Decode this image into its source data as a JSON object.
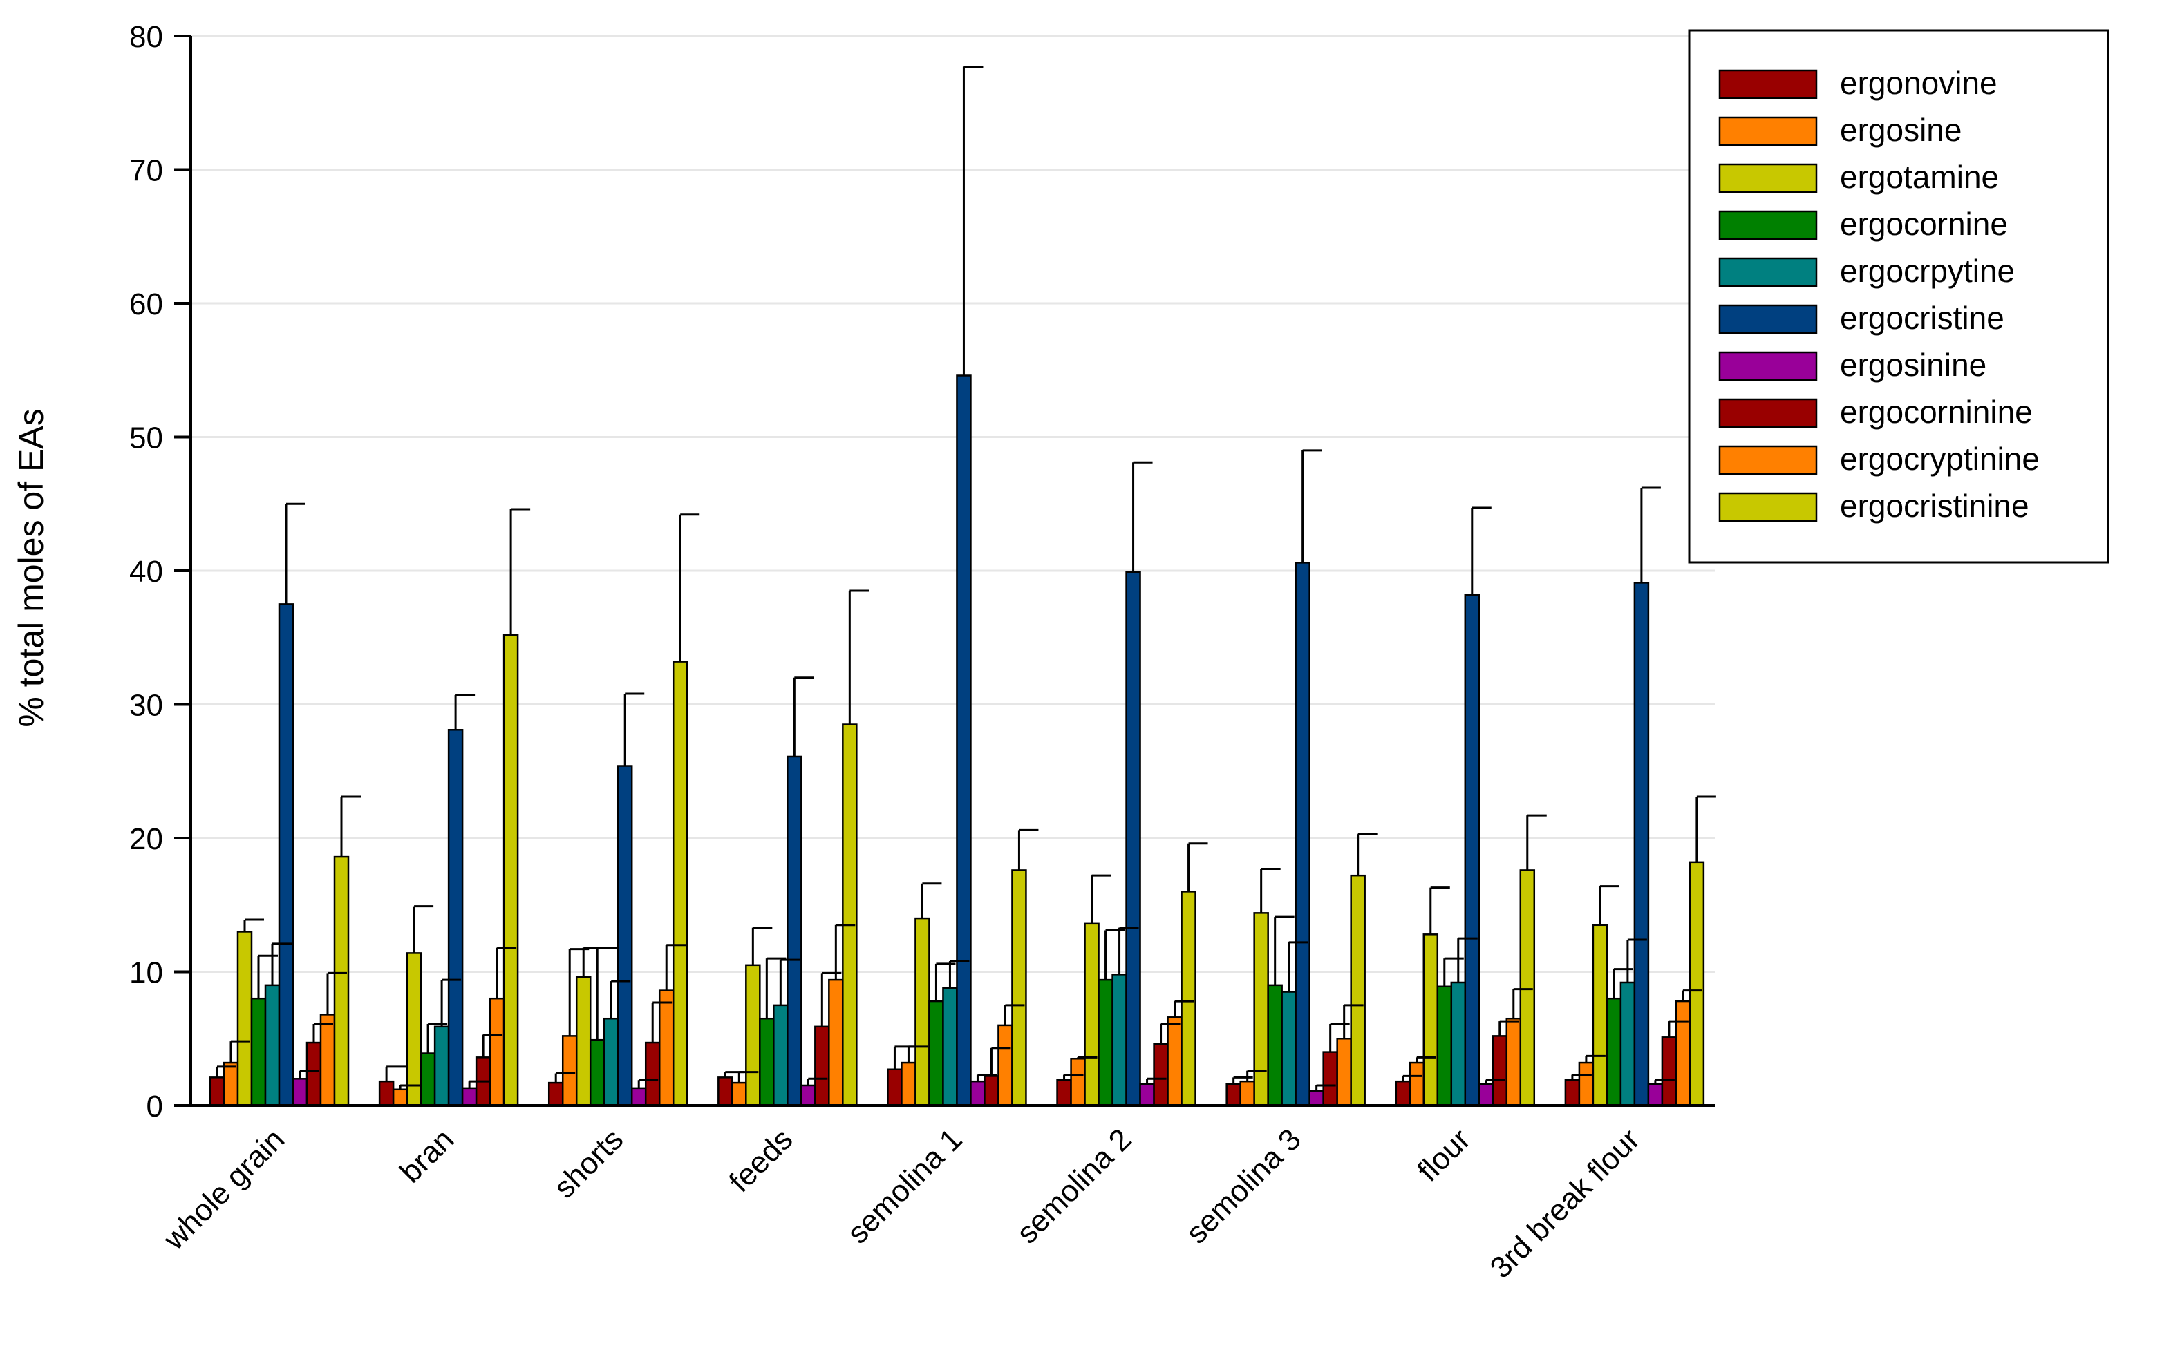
{
  "chart_data": {
    "type": "bar",
    "title": "",
    "xlabel": "",
    "ylabel": "% total moles of EAs",
    "ylim": [
      0,
      80
    ],
    "yticks": [
      0,
      10,
      20,
      30,
      40,
      50,
      60,
      70,
      80
    ],
    "grid": true,
    "legend_position": "top-right",
    "categories": [
      "whole grain",
      "bran",
      "shorts",
      "feeds",
      "semolina 1",
      "semolina 2",
      "semolina 3",
      "flour",
      "3rd break flour"
    ],
    "series": [
      {
        "name": "ergonovine",
        "color": "#990000",
        "values": [
          2.1,
          1.8,
          1.7,
          2.1,
          2.7,
          1.9,
          1.6,
          1.8,
          1.9
        ],
        "errors": [
          0.8,
          1.1,
          0.7,
          0.4,
          1.7,
          0.4,
          0.5,
          0.4,
          0.4
        ]
      },
      {
        "name": "ergosine",
        "color": "#FF8000",
        "values": [
          3.2,
          1.2,
          5.2,
          1.7,
          3.2,
          3.5,
          1.8,
          3.2,
          3.2
        ],
        "errors": [
          1.6,
          0.3,
          6.5,
          0.8,
          1.2,
          0.1,
          0.8,
          0.4,
          0.5
        ]
      },
      {
        "name": "ergotamine",
        "color": "#C8C800",
        "values": [
          13.0,
          11.4,
          9.6,
          10.5,
          14.0,
          13.6,
          14.4,
          12.8,
          13.5
        ],
        "errors": [
          0.9,
          3.5,
          2.2,
          2.8,
          2.6,
          3.6,
          3.3,
          3.5,
          2.9
        ]
      },
      {
        "name": "ergocornine",
        "color": "#008000",
        "values": [
          8.0,
          3.9,
          4.9,
          6.5,
          7.8,
          9.4,
          9.0,
          8.9,
          8.0
        ],
        "errors": [
          3.2,
          2.2,
          6.9,
          4.5,
          2.8,
          3.7,
          5.1,
          2.1,
          2.2
        ]
      },
      {
        "name": "ergocrpytine",
        "color": "#008080",
        "values": [
          9.0,
          5.9,
          6.5,
          7.5,
          8.8,
          9.8,
          8.5,
          9.2,
          9.2
        ],
        "errors": [
          3.1,
          3.5,
          2.8,
          3.4,
          2.0,
          3.5,
          3.7,
          3.3,
          3.2
        ]
      },
      {
        "name": "ergocristine",
        "color": "#004080",
        "values": [
          37.5,
          28.1,
          25.4,
          26.1,
          54.6,
          39.9,
          40.6,
          38.2,
          39.1
        ],
        "errors": [
          7.5,
          2.6,
          5.4,
          5.9,
          23.1,
          8.2,
          8.4,
          6.5,
          7.1
        ]
      },
      {
        "name": "ergosinine",
        "color": "#990099",
        "values": [
          2.0,
          1.3,
          1.3,
          1.5,
          1.8,
          1.6,
          1.1,
          1.6,
          1.6
        ],
        "errors": [
          0.6,
          0.5,
          0.6,
          0.5,
          0.5,
          0.4,
          0.4,
          0.3,
          0.3
        ]
      },
      {
        "name": "ergocorninine",
        "color": "#990000",
        "values": [
          4.7,
          3.6,
          4.7,
          5.9,
          2.2,
          4.6,
          4.0,
          5.2,
          5.1
        ],
        "errors": [
          1.4,
          1.7,
          3.0,
          4.0,
          2.1,
          1.5,
          2.1,
          1.1,
          1.2
        ]
      },
      {
        "name": "ergocryptinine",
        "color": "#FF8000",
        "values": [
          6.8,
          8.0,
          8.6,
          9.4,
          6.0,
          6.6,
          5.0,
          6.5,
          7.8
        ],
        "errors": [
          3.1,
          3.8,
          3.4,
          4.1,
          1.5,
          1.2,
          2.5,
          2.2,
          0.8
        ]
      },
      {
        "name": "ergocristinine",
        "color": "#C8C800",
        "values": [
          18.6,
          35.2,
          33.2,
          28.5,
          17.6,
          16.0,
          17.2,
          17.6,
          18.2
        ],
        "errors": [
          4.5,
          9.4,
          11.0,
          10.0,
          3.0,
          3.6,
          3.1,
          4.1,
          4.9
        ]
      }
    ]
  }
}
